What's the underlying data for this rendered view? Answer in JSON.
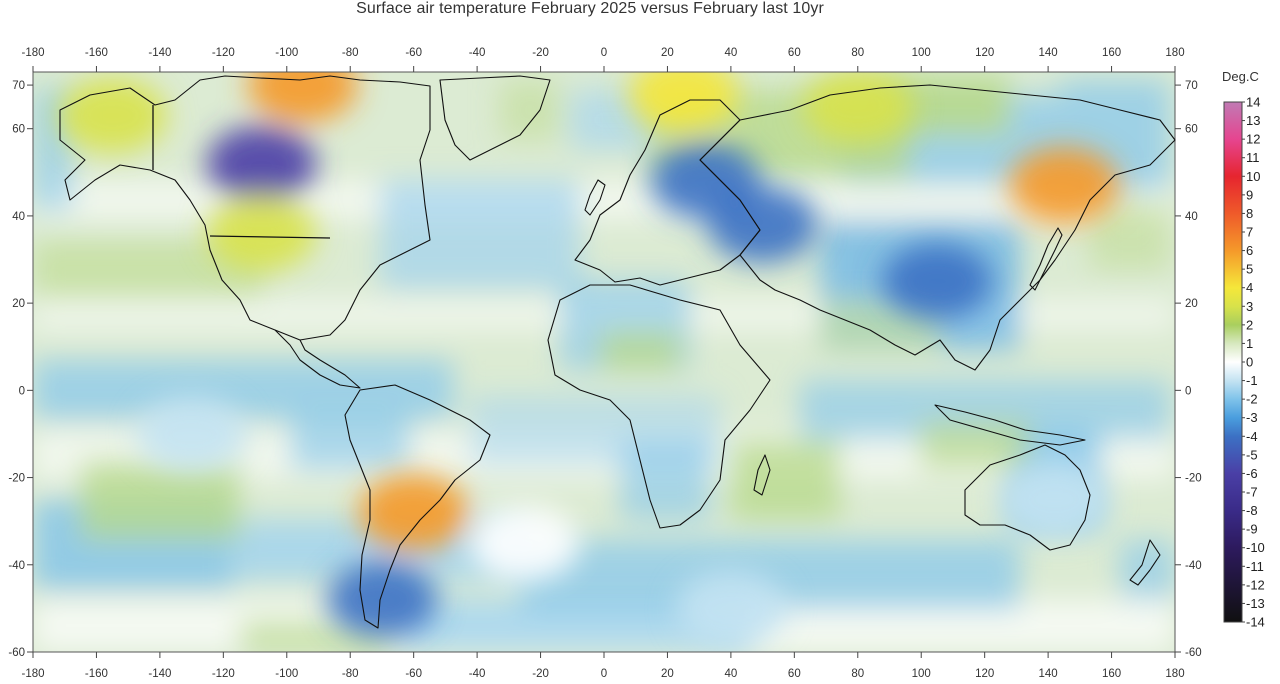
{
  "title": "Surface air temperature February 2025 versus February last 10yr",
  "colorbar": {
    "unit": "Deg.C",
    "min": -14,
    "max": 14,
    "labels": [
      "14",
      "13",
      "12",
      "11",
      "10",
      "9",
      "8",
      "7",
      "6",
      "5",
      "4",
      "3",
      "2",
      "1",
      "0",
      "-1",
      "-2",
      "-3",
      "-4",
      "-5",
      "-6",
      "-7",
      "-8",
      "-9",
      "-10",
      "-11",
      "-12",
      "-13",
      "-14"
    ],
    "stops": [
      {
        "v": 14,
        "c": "#c07ab4"
      },
      {
        "v": 12,
        "c": "#e64590"
      },
      {
        "v": 10,
        "c": "#e6252f"
      },
      {
        "v": 8,
        "c": "#ef5a2a"
      },
      {
        "v": 6,
        "c": "#f5992a"
      },
      {
        "v": 4,
        "c": "#f5e73a"
      },
      {
        "v": 3,
        "c": "#d8e24a"
      },
      {
        "v": 2,
        "c": "#a9cf5e"
      },
      {
        "v": 1,
        "c": "#d7e8bf"
      },
      {
        "v": 0,
        "c": "#ffffff"
      },
      {
        "v": -1,
        "c": "#c4e3f2"
      },
      {
        "v": -2,
        "c": "#7fc3ea"
      },
      {
        "v": -3,
        "c": "#4a9ede"
      },
      {
        "v": -4,
        "c": "#3c71c4"
      },
      {
        "v": -6,
        "c": "#4a3fa6"
      },
      {
        "v": -8,
        "c": "#3a2b88"
      },
      {
        "v": -10,
        "c": "#2d1a5e"
      },
      {
        "v": -14,
        "c": "#101010"
      }
    ]
  },
  "axes": {
    "x_ticks": [
      "-180",
      "-160",
      "-140",
      "-120",
      "-100",
      "-80",
      "-60",
      "-40",
      "-20",
      "0",
      "20",
      "40",
      "60",
      "80",
      "100",
      "120",
      "140",
      "160",
      "180"
    ],
    "y_ticks": [
      "70",
      "60",
      "40",
      "20",
      "0",
      "-20",
      "-40",
      "-60"
    ],
    "x_range": [
      -180,
      180
    ],
    "y_range": [
      -60,
      73
    ]
  },
  "anomaly_regions": [
    {
      "name": "n-america-west",
      "lon": -108,
      "lat": 52,
      "value": -7
    },
    {
      "name": "canada-north",
      "lon": -95,
      "lat": 70,
      "value": 4
    },
    {
      "name": "alaska",
      "lon": -155,
      "lat": 63,
      "value": 2
    },
    {
      "name": "us-southwest",
      "lon": -108,
      "lat": 36,
      "value": 2
    },
    {
      "name": "eastern-europe",
      "lon": 32,
      "lat": 48,
      "value": -5
    },
    {
      "name": "central-asia",
      "lon": 50,
      "lat": 38,
      "value": -6
    },
    {
      "name": "siberia",
      "lon": 80,
      "lat": 65,
      "value": 2
    },
    {
      "name": "scandinavia",
      "lon": 25,
      "lat": 68,
      "value": 3
    },
    {
      "name": "far-east",
      "lon": 145,
      "lat": 47,
      "value": 4
    },
    {
      "name": "china-south",
      "lon": 105,
      "lat": 25,
      "value": -5
    },
    {
      "name": "south-america-east",
      "lon": -60,
      "lat": -28,
      "value": 4
    },
    {
      "name": "patagonia",
      "lon": -70,
      "lat": -48,
      "value": -6
    },
    {
      "name": "australia-east",
      "lon": 142,
      "lat": -25,
      "value": -2
    },
    {
      "name": "southern-ocean",
      "lon": 40,
      "lat": -50,
      "value": -2
    },
    {
      "name": "pacific-east",
      "lon": -130,
      "lat": -10,
      "value": -2
    },
    {
      "name": "atlantic-south",
      "lon": -25,
      "lat": -35,
      "value": -1
    }
  ]
}
